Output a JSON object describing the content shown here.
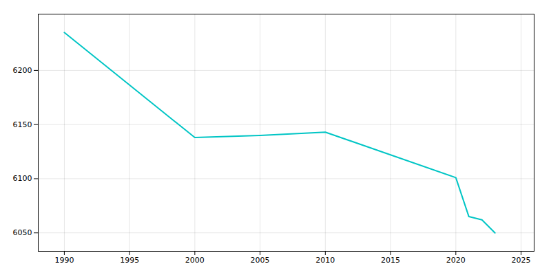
{
  "chart_data": {
    "type": "line",
    "x": [
      1990,
      2000,
      2005,
      2010,
      2020,
      2021,
      2022,
      2023
    ],
    "values": [
      6235,
      6138,
      6140,
      6143,
      6101,
      6065,
      6062,
      6050
    ],
    "color": "#00C5C5",
    "xlim": [
      1988,
      2026
    ],
    "ylim": [
      6033,
      6252
    ],
    "xticks": [
      1990,
      1995,
      2000,
      2005,
      2010,
      2015,
      2020,
      2025
    ],
    "yticks": [
      6050,
      6100,
      6150,
      6200
    ],
    "grid": true
  }
}
